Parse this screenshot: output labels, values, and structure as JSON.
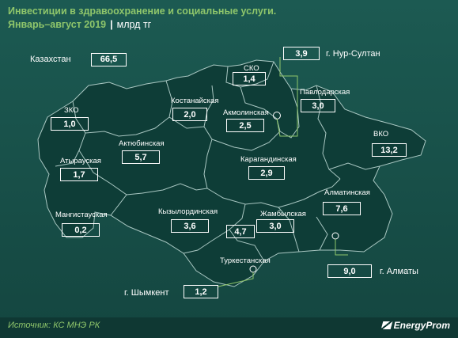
{
  "header": {
    "title": "Инвестиции в здравоохранение и социальные услуги.",
    "period": "Январь–август 2019",
    "separator": "|",
    "unit": "млрд тг"
  },
  "country": {
    "label": "Казахстан",
    "value": "66,5"
  },
  "regions": {
    "sko": {
      "label": "СКО",
      "value": "1,4"
    },
    "nur_sultan": {
      "label": "г. Нур-Султан",
      "value": "3,9"
    },
    "pavlodar": {
      "label": "Павлодарская",
      "value": "3,0"
    },
    "kostanay": {
      "label": "Костанайская",
      "value": "2,0"
    },
    "akmola": {
      "label": "Акмолинская",
      "value": "2,5"
    },
    "zko": {
      "label": "ЗКО",
      "value": "1,0"
    },
    "aktobe": {
      "label": "Актюбинская",
      "value": "5,7"
    },
    "vko": {
      "label": "ВКО",
      "value": "13,2"
    },
    "atyrau": {
      "label": "Атырауская",
      "value": "1,7"
    },
    "karaganda": {
      "label": "Карагандинская",
      "value": "2,9"
    },
    "mangystau": {
      "label": "Мангистауская",
      "value": "0,2"
    },
    "kyzylorda": {
      "label": "Кызылординская",
      "value": "3,6"
    },
    "zhambyl": {
      "label": "Жамбылская",
      "value": "3,0"
    },
    "almaty_reg": {
      "label": "Алматинская",
      "value": "7,6"
    },
    "turkestan": {
      "label": "Туркестанская",
      "value": "4,7"
    },
    "shymkent": {
      "label": "г. Шымкент",
      "value": "1,2"
    },
    "almaty_city": {
      "label": "г. Алматы",
      "value": "9,0"
    }
  },
  "footer": {
    "source": "Источник: КС МНЭ РК",
    "brand": "EnergyProm"
  },
  "colors": {
    "background": "#174d47",
    "map_fill": "#0d3b35",
    "accent": "#8fc66b",
    "border": "#a9c7c2"
  }
}
